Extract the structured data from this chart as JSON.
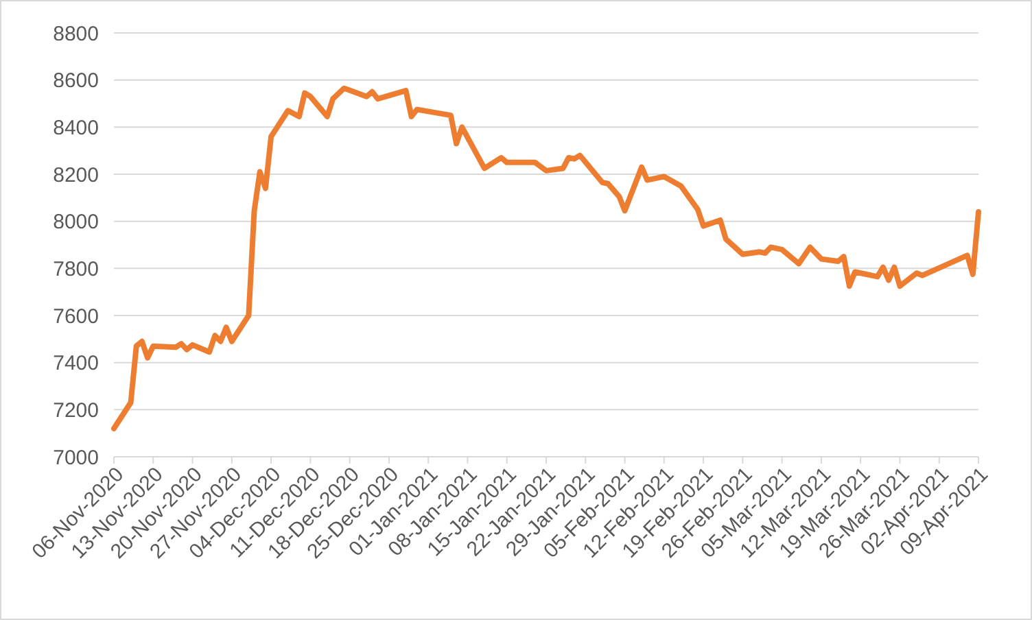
{
  "chart_data": {
    "type": "line",
    "grid": "y",
    "marker": "none",
    "line_style": "solid",
    "x": [
      "2020-11-06",
      "2020-11-09",
      "2020-11-10",
      "2020-11-11",
      "2020-11-12",
      "2020-11-13",
      "2020-11-17",
      "2020-11-18",
      "2020-11-19",
      "2020-11-20",
      "2020-11-23",
      "2020-11-24",
      "2020-11-25",
      "2020-11-26",
      "2020-11-27",
      "2020-11-30",
      "2020-12-01",
      "2020-12-02",
      "2020-12-03",
      "2020-12-04",
      "2020-12-07",
      "2020-12-09",
      "2020-12-10",
      "2020-12-11",
      "2020-12-14",
      "2020-12-15",
      "2020-12-17",
      "2020-12-21",
      "2020-12-22",
      "2020-12-23",
      "2020-12-28",
      "2020-12-29",
      "2020-12-30",
      "2021-01-05",
      "2021-01-06",
      "2021-01-07",
      "2021-01-11",
      "2021-01-14",
      "2021-01-15",
      "2021-01-20",
      "2021-01-22",
      "2021-01-25",
      "2021-01-26",
      "2021-01-27",
      "2021-01-28",
      "2021-02-01",
      "2021-02-02",
      "2021-02-04",
      "2021-02-05",
      "2021-02-08",
      "2021-02-09",
      "2021-02-12",
      "2021-02-15",
      "2021-02-18",
      "2021-02-19",
      "2021-02-22",
      "2021-02-23",
      "2021-02-26",
      "2021-03-01",
      "2021-03-02",
      "2021-03-03",
      "2021-03-05",
      "2021-03-08",
      "2021-03-10",
      "2021-03-12",
      "2021-03-15",
      "2021-03-16",
      "2021-03-17",
      "2021-03-18",
      "2021-03-22",
      "2021-03-23",
      "2021-03-24",
      "2021-03-25",
      "2021-03-26",
      "2021-03-29",
      "2021-03-30",
      "2021-04-07",
      "2021-04-08",
      "2021-04-09"
    ],
    "series": [
      {
        "color": "#ed7d31",
        "values": [
          7120,
          7230,
          7470,
          7490,
          7420,
          7470,
          7465,
          7480,
          7455,
          7475,
          7445,
          7515,
          7490,
          7550,
          7490,
          7600,
          8045,
          8210,
          8140,
          8360,
          8470,
          8445,
          8545,
          8530,
          8445,
          8520,
          8565,
          8530,
          8550,
          8520,
          8555,
          8445,
          8475,
          8450,
          8330,
          8400,
          8225,
          8270,
          8250,
          8250,
          8215,
          8225,
          8270,
          8265,
          8280,
          8165,
          8160,
          8105,
          8045,
          8230,
          8175,
          8190,
          8150,
          8050,
          7980,
          8005,
          7925,
          7860,
          7870,
          7865,
          7890,
          7880,
          7820,
          7890,
          7840,
          7830,
          7850,
          7725,
          7785,
          7765,
          7805,
          7750,
          7805,
          7725,
          7780,
          7770,
          7855,
          7775,
          8040
        ]
      }
    ],
    "ylim": [
      7000,
      8800
    ],
    "yticks": [
      7000,
      7200,
      7400,
      7600,
      7800,
      8000,
      8200,
      8400,
      8600,
      8800
    ],
    "xlim": [
      "2020-11-06",
      "2021-04-09"
    ],
    "xticks": [
      {
        "value": "2020-11-06",
        "label": "06-Nov-2020"
      },
      {
        "value": "2020-11-13",
        "label": "13-Nov-2020"
      },
      {
        "value": "2020-11-20",
        "label": "20-Nov-2020"
      },
      {
        "value": "2020-11-27",
        "label": "27-Nov-2020"
      },
      {
        "value": "2020-12-04",
        "label": "04-Dec-2020"
      },
      {
        "value": "2020-12-11",
        "label": "11-Dec-2020"
      },
      {
        "value": "2020-12-18",
        "label": "18-Dec-2020"
      },
      {
        "value": "2020-12-25",
        "label": "25-Dec-2020"
      },
      {
        "value": "2021-01-01",
        "label": "01-Jan-2021"
      },
      {
        "value": "2021-01-08",
        "label": "08-Jan-2021"
      },
      {
        "value": "2021-01-15",
        "label": "15-Jan-2021"
      },
      {
        "value": "2021-01-22",
        "label": "22-Jan-2021"
      },
      {
        "value": "2021-01-29",
        "label": "29-Jan-2021"
      },
      {
        "value": "2021-02-05",
        "label": "05-Feb-2021"
      },
      {
        "value": "2021-02-12",
        "label": "12-Feb-2021"
      },
      {
        "value": "2021-02-19",
        "label": "19-Feb-2021"
      },
      {
        "value": "2021-02-26",
        "label": "26-Feb-2021"
      },
      {
        "value": "2021-03-05",
        "label": "05-Mar-2021"
      },
      {
        "value": "2021-03-12",
        "label": "12-Mar-2021"
      },
      {
        "value": "2021-03-19",
        "label": "19-Mar-2021"
      },
      {
        "value": "2021-03-26",
        "label": "26-Mar-2021"
      },
      {
        "value": "2021-04-02",
        "label": "02-Apr-2021"
      },
      {
        "value": "2021-04-09",
        "label": "09-Apr-2021"
      }
    ]
  }
}
